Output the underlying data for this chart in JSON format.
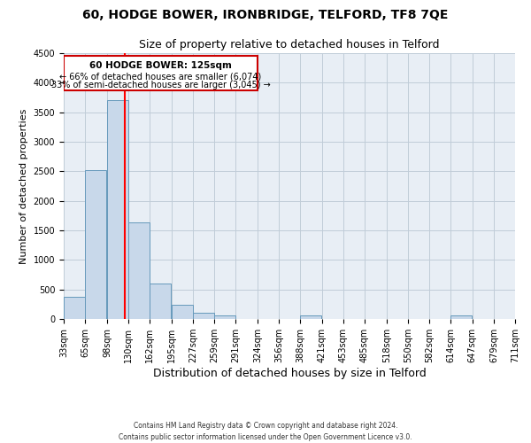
{
  "title": "60, HODGE BOWER, IRONBRIDGE, TELFORD, TF8 7QE",
  "subtitle": "Size of property relative to detached houses in Telford",
  "xlabel": "Distribution of detached houses by size in Telford",
  "ylabel": "Number of detached properties",
  "bins": [
    33,
    65,
    98,
    130,
    162,
    195,
    227,
    259,
    291,
    324,
    356,
    388,
    421,
    453,
    485,
    518,
    550,
    582,
    614,
    647,
    679
  ],
  "counts": [
    380,
    2520,
    3700,
    1630,
    600,
    240,
    100,
    65,
    0,
    0,
    0,
    65,
    0,
    0,
    0,
    0,
    0,
    0,
    65,
    0,
    0
  ],
  "bar_color": "#c8d8ea",
  "bar_edge_color": "#6699bb",
  "red_line_x": 125,
  "ylim": [
    0,
    4500
  ],
  "yticks": [
    0,
    500,
    1000,
    1500,
    2000,
    2500,
    3000,
    3500,
    4000,
    4500
  ],
  "annotation_title": "60 HODGE BOWER: 125sqm",
  "annotation_line1": "← 66% of detached houses are smaller (6,074)",
  "annotation_line2": "33% of semi-detached houses are larger (3,045) →",
  "annotation_box_color": "#ffffff",
  "annotation_box_edge": "#cc0000",
  "footnote1": "Contains HM Land Registry data © Crown copyright and database right 2024.",
  "footnote2": "Contains public sector information licensed under the Open Government Licence v3.0.",
  "background_color": "#ffffff",
  "ax_background": "#e8eef5",
  "grid_color": "#c0ccd8",
  "title_fontsize": 10,
  "subtitle_fontsize": 9,
  "xlabel_fontsize": 9,
  "ylabel_fontsize": 8,
  "tick_fontsize": 7
}
